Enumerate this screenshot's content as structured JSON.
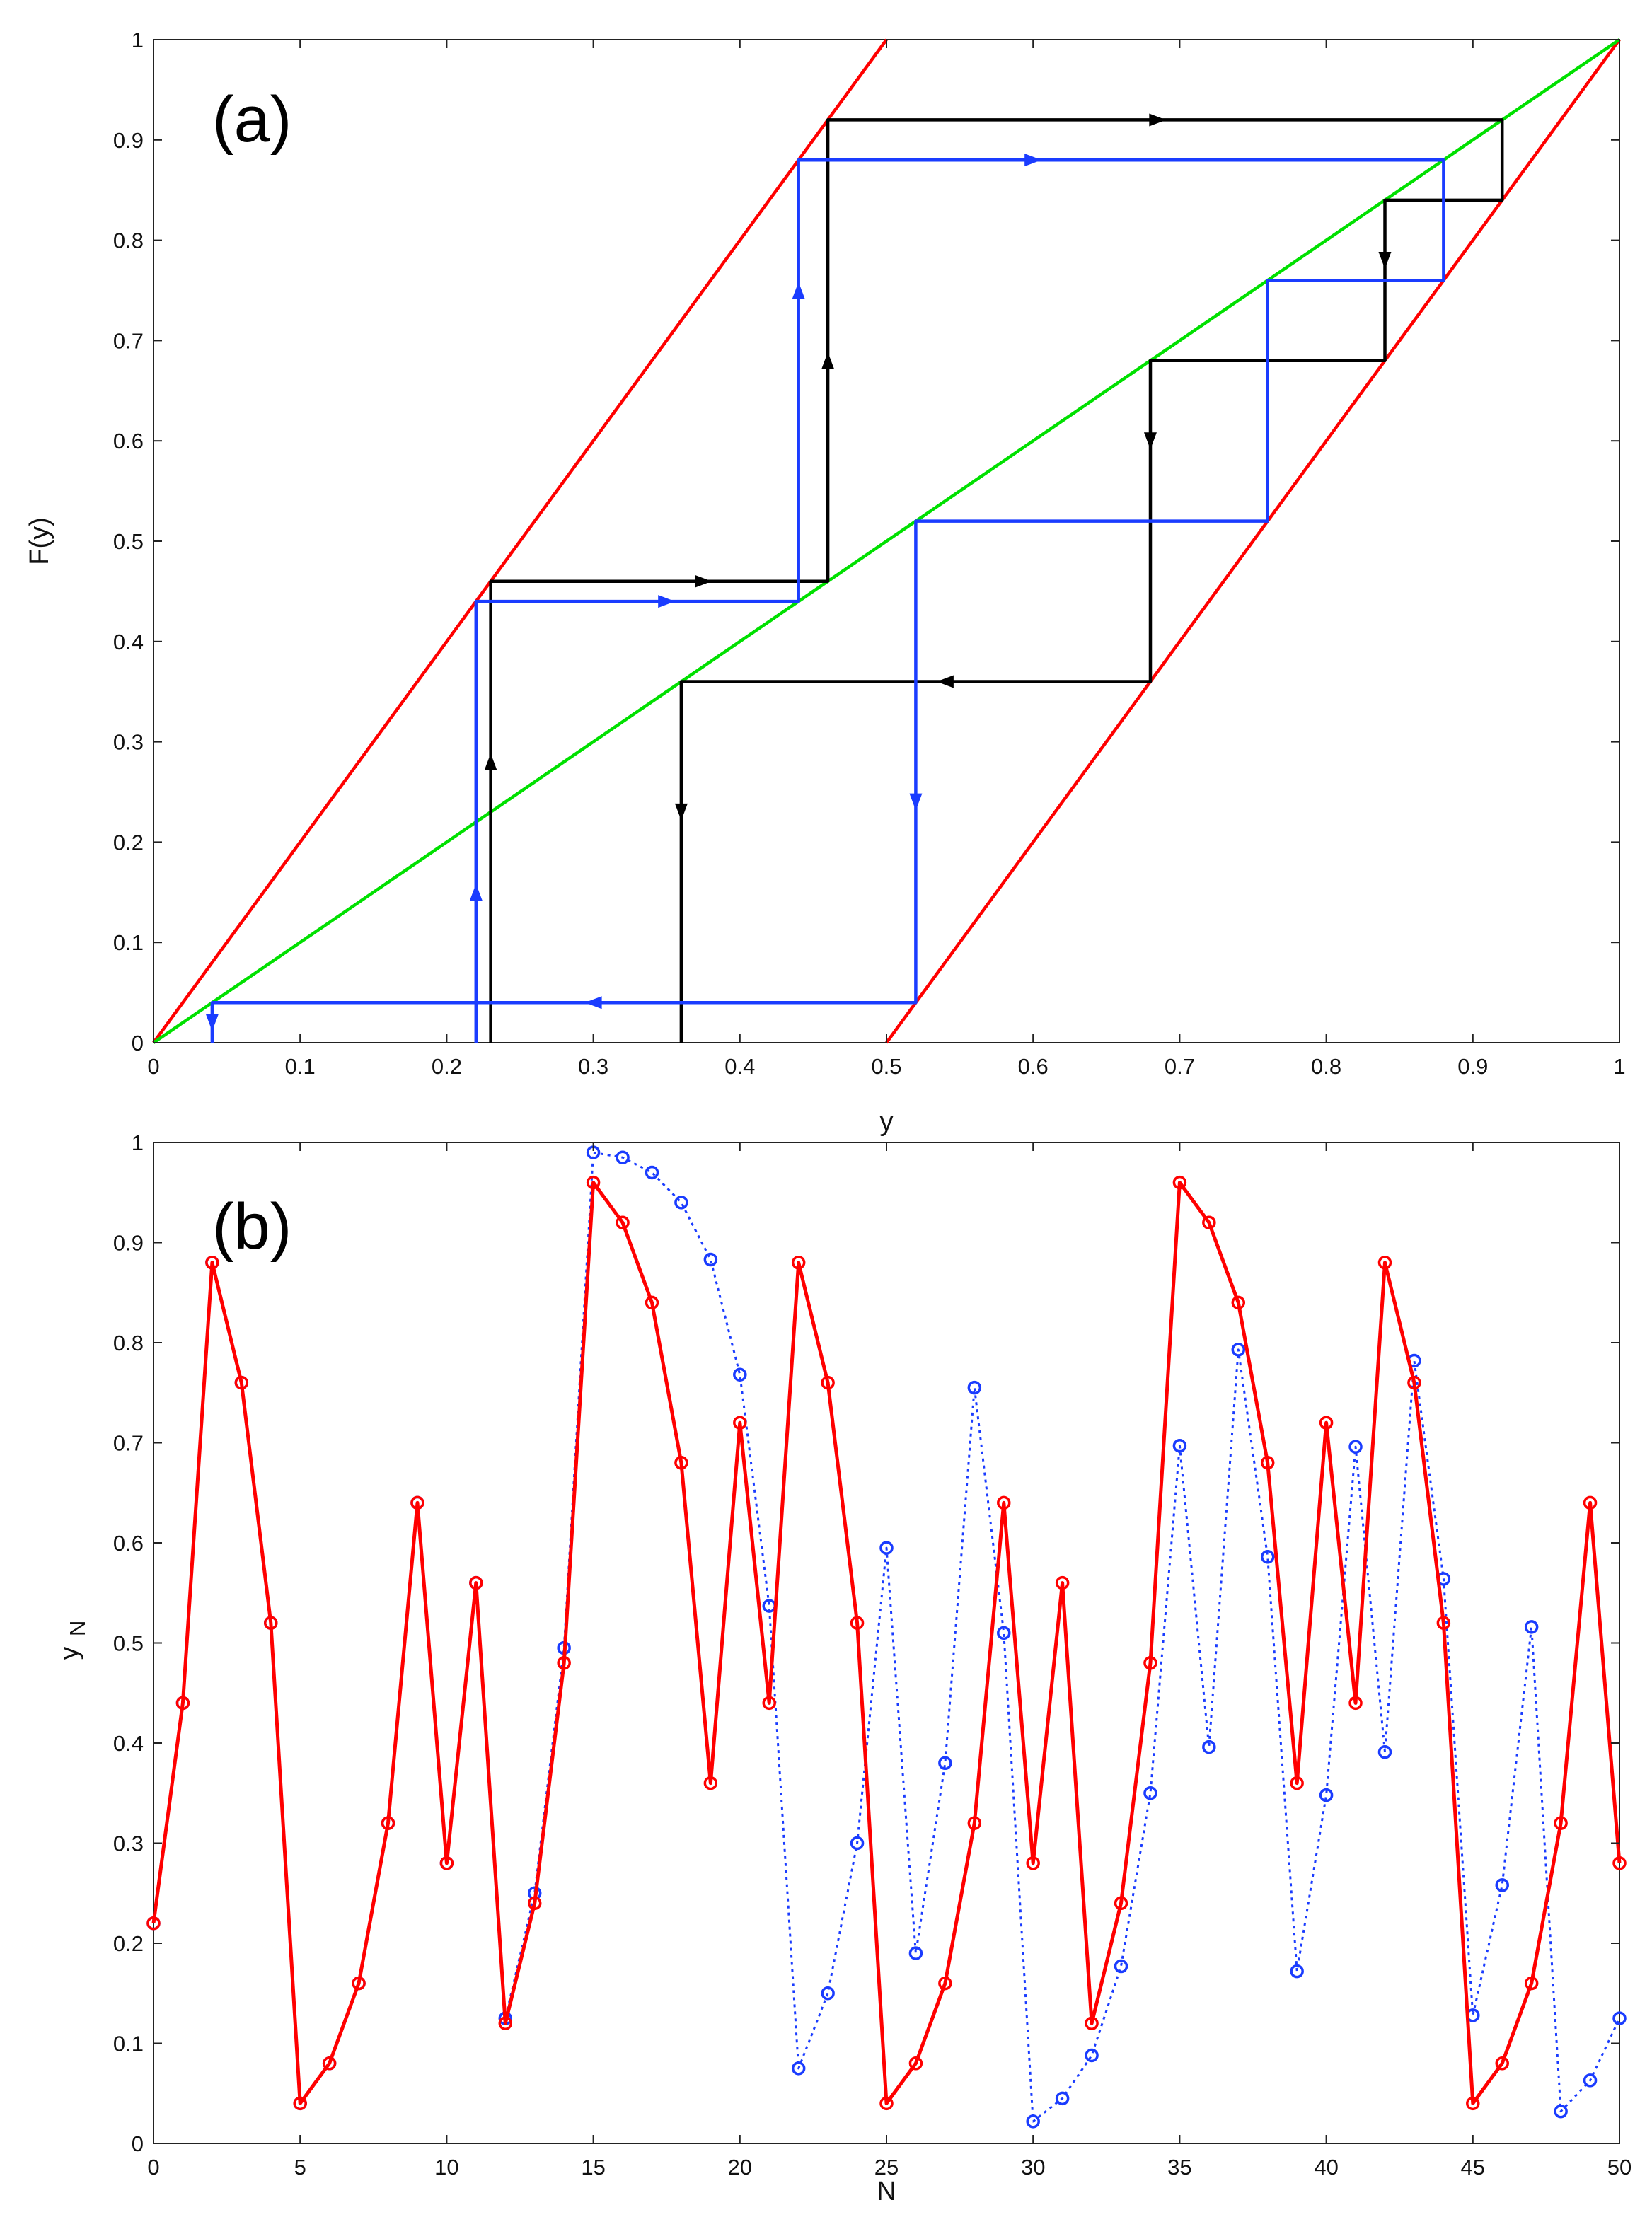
{
  "chart_data": [
    {
      "type": "line",
      "panel_label": "(a)",
      "xlabel": "y",
      "ylabel": "F(y)",
      "xlim": [
        0,
        1
      ],
      "ylim": [
        0,
        1
      ],
      "xticks": [
        0,
        0.1,
        0.2,
        0.3,
        0.4,
        0.5,
        0.6,
        0.7,
        0.8,
        0.9,
        1
      ],
      "yticks": [
        0,
        0.1,
        0.2,
        0.3,
        0.4,
        0.5,
        0.6,
        0.7,
        0.8,
        0.9,
        1
      ],
      "grid": false,
      "series": [
        {
          "color": "#ff0000",
          "x": [
            0,
            0.5
          ],
          "y": [
            0,
            1
          ]
        },
        {
          "color": "#ff0000",
          "x": [
            0.5,
            1
          ],
          "y": [
            0,
            1
          ]
        },
        {
          "color": "#00e000",
          "x": [
            0,
            1
          ],
          "y": [
            0,
            1
          ]
        },
        {
          "color": "#000000",
          "x": [
            0.23,
            0.23,
            0.46,
            0.46,
            0.92,
            0.92,
            0.84,
            0.84,
            0.68,
            0.68,
            0.36,
            0.36
          ],
          "y": [
            0,
            0.46,
            0.46,
            0.92,
            0.92,
            0.84,
            0.84,
            0.68,
            0.68,
            0.36,
            0.36,
            0
          ],
          "arrows": [
            {
              "x": 0.23,
              "y": 0.28,
              "dir": "up"
            },
            {
              "x": 0.375,
              "y": 0.46,
              "dir": "right"
            },
            {
              "x": 0.46,
              "y": 0.68,
              "dir": "up"
            },
            {
              "x": 0.685,
              "y": 0.92,
              "dir": "right"
            },
            {
              "x": 0.84,
              "y": 0.78,
              "dir": "down"
            },
            {
              "x": 0.68,
              "y": 0.6,
              "dir": "down"
            },
            {
              "x": 0.54,
              "y": 0.36,
              "dir": "left"
            },
            {
              "x": 0.36,
              "y": 0.23,
              "dir": "down"
            }
          ]
        },
        {
          "color": "#1a3cff",
          "x": [
            0.22,
            0.22,
            0.44,
            0.44,
            0.88,
            0.88,
            0.76,
            0.76,
            0.52,
            0.52,
            0.04,
            0.04
          ],
          "y": [
            0,
            0.44,
            0.44,
            0.88,
            0.88,
            0.76,
            0.76,
            0.52,
            0.52,
            0.04,
            0.04,
            0
          ],
          "arrows": [
            {
              "x": 0.22,
              "y": 0.15,
              "dir": "up"
            },
            {
              "x": 0.35,
              "y": 0.44,
              "dir": "right"
            },
            {
              "x": 0.44,
              "y": 0.75,
              "dir": "up"
            },
            {
              "x": 0.6,
              "y": 0.88,
              "dir": "right"
            },
            {
              "x": 0.52,
              "y": 0.24,
              "dir": "down"
            },
            {
              "x": 0.3,
              "y": 0.04,
              "dir": "left"
            },
            {
              "x": 0.04,
              "y": 0.02,
              "dir": "down"
            }
          ]
        }
      ]
    },
    {
      "type": "line",
      "panel_label": "(b)",
      "xlabel": "N",
      "ylabel": "y",
      "ylabel_sub": "N",
      "xlim": [
        0,
        50
      ],
      "ylim": [
        0,
        1
      ],
      "xticks": [
        0,
        5,
        10,
        15,
        20,
        25,
        30,
        35,
        40,
        45,
        50
      ],
      "yticks": [
        0,
        0.1,
        0.2,
        0.3,
        0.4,
        0.5,
        0.6,
        0.7,
        0.8,
        0.9,
        1
      ],
      "grid": false,
      "series": [
        {
          "color": "#1a3cff",
          "style": "dotted",
          "x": [
            0,
            1,
            2,
            3,
            4,
            5,
            6,
            7,
            8,
            9,
            10,
            11,
            12,
            13,
            14,
            15,
            16,
            17,
            18,
            19,
            20,
            21,
            22,
            23,
            24,
            25,
            26,
            27,
            28,
            29,
            30,
            31,
            32,
            33,
            34,
            35,
            36,
            37,
            38,
            39,
            40,
            41,
            42,
            43,
            44,
            45,
            46,
            47,
            48,
            49,
            50
          ],
          "y": [
            0.22,
            0.44,
            0.88,
            0.76,
            0.52,
            0.04,
            0.08,
            0.16,
            0.32,
            0.64,
            0.28,
            0.56,
            0.125,
            0.25,
            0.495,
            0.99,
            0.985,
            0.97,
            0.94,
            0.883,
            0.768,
            0.537,
            0.075,
            0.15,
            0.3,
            0.595,
            0.19,
            0.38,
            0.755,
            0.51,
            0.022,
            0.045,
            0.088,
            0.177,
            0.35,
            0.697,
            0.396,
            0.793,
            0.586,
            0.172,
            0.348,
            0.696,
            0.391,
            0.782,
            0.564,
            0.128,
            0.258,
            0.516,
            0.032,
            0.063,
            0.125
          ]
        },
        {
          "color": "#ff0000",
          "style": "solid",
          "x": [
            0,
            1,
            2,
            3,
            4,
            5,
            6,
            7,
            8,
            9,
            10,
            11,
            12,
            13,
            14,
            15,
            16,
            17,
            18,
            19,
            20,
            21,
            22,
            23,
            24,
            25,
            26,
            27,
            28,
            29,
            30,
            31,
            32,
            33,
            34,
            35,
            36,
            37,
            38,
            39,
            40,
            41,
            42,
            43,
            44,
            45,
            46,
            47,
            48,
            49,
            50
          ],
          "y": [
            0.22,
            0.44,
            0.88,
            0.76,
            0.52,
            0.04,
            0.08,
            0.16,
            0.32,
            0.64,
            0.28,
            0.56,
            0.12,
            0.24,
            0.48,
            0.96,
            0.92,
            0.84,
            0.68,
            0.36,
            0.72,
            0.44,
            0.88,
            0.76,
            0.52,
            0.04,
            0.08,
            0.16,
            0.32,
            0.64,
            0.28,
            0.56,
            0.12,
            0.24,
            0.48,
            0.96,
            0.92,
            0.84,
            0.68,
            0.36,
            0.72,
            0.44,
            0.88,
            0.76,
            0.52,
            0.04,
            0.08,
            0.16,
            0.32,
            0.64,
            0.28
          ]
        }
      ]
    }
  ]
}
